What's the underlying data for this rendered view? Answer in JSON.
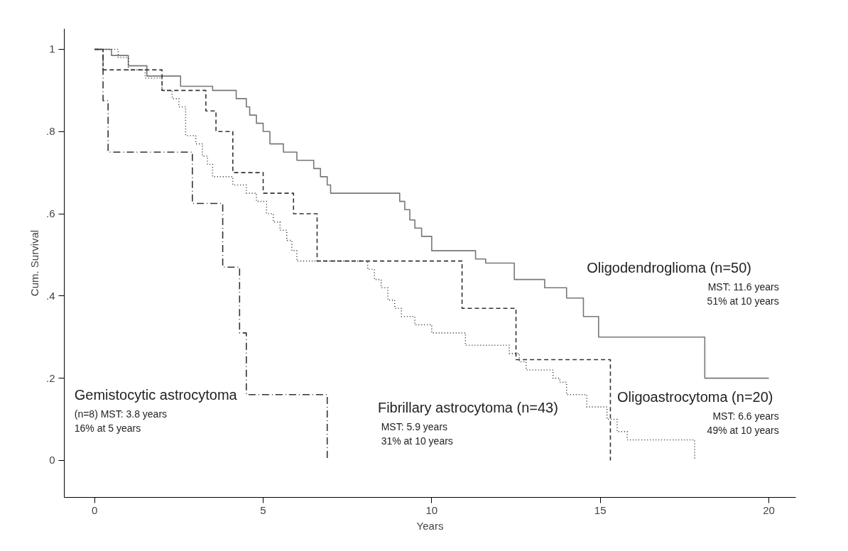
{
  "chart_data": {
    "type": "step",
    "ylabel": "Cum. Survival",
    "xlabel": "Years",
    "xlim": [
      -0.9,
      20.8
    ],
    "ylim": [
      -0.09,
      1.05
    ],
    "xticks": [
      0,
      5,
      10,
      15,
      20
    ],
    "yticks": [
      0,
      {
        "value": 0.2,
        "label": ".2"
      },
      {
        "value": 0.4,
        "label": ".4"
      },
      {
        "value": 0.6,
        "label": ".6"
      },
      {
        "value": 0.8,
        "label": ".8"
      },
      1
    ],
    "grid": false,
    "marker": "none",
    "series": [
      {
        "name": "Oligodendroglioma (n=50)",
        "color": "#777777",
        "line_style": "solid",
        "x": [
          0,
          0.5,
          1.0,
          1.55,
          2.55,
          3.5,
          4.2,
          4.5,
          4.6,
          4.8,
          5.0,
          5.2,
          5.6,
          6.0,
          6.5,
          6.7,
          6.9,
          7.0,
          9.05,
          9.2,
          9.35,
          9.5,
          9.7,
          10.0,
          11.3,
          11.6,
          12.45,
          13.35,
          14.0,
          14.5,
          14.95,
          18.1,
          20.0
        ],
        "values": [
          1,
          0.985,
          0.96,
          0.935,
          0.91,
          0.9,
          0.88,
          0.86,
          0.84,
          0.82,
          0.8,
          0.77,
          0.75,
          0.73,
          0.71,
          0.69,
          0.67,
          0.65,
          0.63,
          0.61,
          0.585,
          0.565,
          0.545,
          0.51,
          0.49,
          0.48,
          0.44,
          0.42,
          0.395,
          0.35,
          0.3,
          0.2,
          0.2
        ]
      },
      {
        "name": "Fibrillary astrocytoma (n=43)",
        "color": "#333333",
        "line_style": "dotted",
        "x": [
          0,
          0.7,
          1.0,
          1.5,
          2.0,
          2.3,
          2.5,
          2.7,
          3.0,
          3.2,
          3.35,
          3.5,
          4.1,
          4.5,
          4.8,
          5.1,
          5.3,
          5.5,
          5.7,
          5.85,
          6.0,
          8.1,
          8.3,
          8.5,
          8.7,
          8.9,
          9.1,
          9.5,
          10.0,
          11.0,
          12.3,
          12.6,
          12.8,
          13.6,
          13.8,
          14.0,
          14.6,
          15.2,
          15.5,
          15.8,
          17.8
        ],
        "values": [
          1,
          0.98,
          0.95,
          0.93,
          0.9,
          0.88,
          0.86,
          0.79,
          0.77,
          0.74,
          0.72,
          0.69,
          0.67,
          0.65,
          0.63,
          0.6,
          0.58,
          0.56,
          0.535,
          0.51,
          0.485,
          0.465,
          0.44,
          0.42,
          0.39,
          0.37,
          0.35,
          0.33,
          0.31,
          0.28,
          0.26,
          0.24,
          0.22,
          0.2,
          0.19,
          0.16,
          0.13,
          0.1,
          0.07,
          0.05,
          0
        ]
      },
      {
        "name": "Oligoastrocytoma (n=20)",
        "color": "#333333",
        "line_style": "dashed",
        "x": [
          0,
          0.25,
          2.0,
          3.3,
          3.6,
          4.1,
          5.0,
          5.9,
          6.6,
          10.9,
          12.5,
          15.3
        ],
        "values": [
          1,
          0.95,
          0.9,
          0.85,
          0.8,
          0.7,
          0.65,
          0.6,
          0.485,
          0.37,
          0.245,
          0
        ]
      },
      {
        "name": "Gemistocytic astrocytoma",
        "color": "#333333",
        "line_style": "dashdot",
        "x": [
          0,
          0.25,
          0.4,
          2.9,
          3.8,
          4.3,
          4.5,
          6.9
        ],
        "values": [
          1,
          0.875,
          0.75,
          0.625,
          0.47,
          0.31,
          0.16,
          0
        ]
      }
    ],
    "annotations": [
      "MST: 11.6 years",
      "51% at 10 years",
      "MST: 5.9 years",
      "31% at 10 years",
      "MST: 6.6 years",
      "49% at 10 years",
      "(n=8) MST: 3.8 years",
      "16% at 5 years"
    ]
  }
}
